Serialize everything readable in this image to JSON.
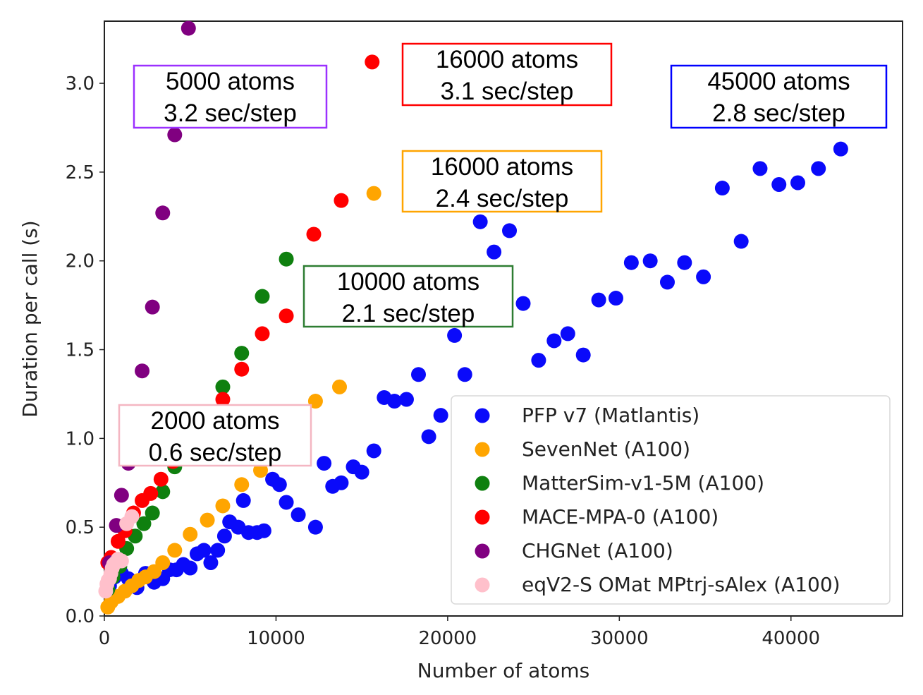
{
  "chart_data": {
    "type": "scatter",
    "title": "",
    "xlabel": "Number of atoms",
    "ylabel": "Duration per call (s)",
    "xlim": [
      0,
      46500
    ],
    "ylim": [
      0,
      3.35
    ],
    "xticks": [
      0,
      10000,
      20000,
      30000,
      40000
    ],
    "xtick_labels": [
      "0",
      "10000",
      "20000",
      "30000",
      "40000"
    ],
    "yticks": [
      0.0,
      0.5,
      1.0,
      1.5,
      2.0,
      2.5,
      3.0
    ],
    "ytick_labels": [
      "0.0",
      "0.5",
      "1.0",
      "1.5",
      "2.0",
      "2.5",
      "3.0"
    ],
    "grid": false,
    "legend_position": "lower-right",
    "series": [
      {
        "name": "PFP v7 (Matlantis)",
        "color": "#0a0afa",
        "points": [
          [
            300,
            0.17
          ],
          [
            600,
            0.22
          ],
          [
            1000,
            0.24
          ],
          [
            1400,
            0.21
          ],
          [
            1900,
            0.16
          ],
          [
            2400,
            0.24
          ],
          [
            2900,
            0.19
          ],
          [
            3400,
            0.21
          ],
          [
            3800,
            0.26
          ],
          [
            4200,
            0.26
          ],
          [
            4600,
            0.29
          ],
          [
            5000,
            0.27
          ],
          [
            5400,
            0.35
          ],
          [
            5800,
            0.37
          ],
          [
            6200,
            0.3
          ],
          [
            6600,
            0.37
          ],
          [
            7000,
            0.45
          ],
          [
            7300,
            0.53
          ],
          [
            7800,
            0.5
          ],
          [
            8100,
            0.65
          ],
          [
            8400,
            0.47
          ],
          [
            8900,
            0.47
          ],
          [
            9300,
            0.48
          ],
          [
            9800,
            0.77
          ],
          [
            10200,
            0.74
          ],
          [
            10600,
            0.64
          ],
          [
            11300,
            0.57
          ],
          [
            12300,
            0.5
          ],
          [
            12800,
            0.86
          ],
          [
            13300,
            0.73
          ],
          [
            13800,
            0.75
          ],
          [
            14500,
            0.84
          ],
          [
            15000,
            0.81
          ],
          [
            15700,
            0.93
          ],
          [
            16300,
            1.23
          ],
          [
            16900,
            1.21
          ],
          [
            17600,
            1.22
          ],
          [
            18300,
            1.36
          ],
          [
            18900,
            1.01
          ],
          [
            19600,
            1.13
          ],
          [
            20400,
            1.58
          ],
          [
            21000,
            1.36
          ],
          [
            21900,
            2.22
          ],
          [
            22700,
            2.05
          ],
          [
            23600,
            2.17
          ],
          [
            24400,
            1.76
          ],
          [
            25300,
            1.44
          ],
          [
            26200,
            1.55
          ],
          [
            27000,
            1.59
          ],
          [
            27900,
            1.47
          ],
          [
            28800,
            1.78
          ],
          [
            29800,
            1.79
          ],
          [
            30700,
            1.99
          ],
          [
            31800,
            2.0
          ],
          [
            32800,
            1.88
          ],
          [
            33800,
            1.99
          ],
          [
            34900,
            1.91
          ],
          [
            36000,
            2.41
          ],
          [
            37100,
            2.11
          ],
          [
            38200,
            2.52
          ],
          [
            39300,
            2.43
          ],
          [
            40400,
            2.44
          ],
          [
            41600,
            2.52
          ],
          [
            42900,
            2.63
          ]
        ]
      },
      {
        "name": "SevenNet (A100)",
        "color": "#ffa500",
        "points": [
          [
            200,
            0.05
          ],
          [
            400,
            0.08
          ],
          [
            800,
            0.11
          ],
          [
            1200,
            0.14
          ],
          [
            1600,
            0.17
          ],
          [
            2000,
            0.2
          ],
          [
            2400,
            0.22
          ],
          [
            2900,
            0.25
          ],
          [
            3400,
            0.3
          ],
          [
            4100,
            0.37
          ],
          [
            5000,
            0.46
          ],
          [
            6000,
            0.54
          ],
          [
            6900,
            0.62
          ],
          [
            8000,
            0.74
          ],
          [
            9100,
            0.82
          ],
          [
            10500,
            0.96
          ],
          [
            12300,
            1.21
          ],
          [
            13700,
            1.29
          ],
          [
            15700,
            2.38
          ]
        ]
      },
      {
        "name": "MatterSim-v1-5M (A100)",
        "color": "#0f800f",
        "points": [
          [
            200,
            0.15
          ],
          [
            500,
            0.22
          ],
          [
            900,
            0.28
          ],
          [
            1300,
            0.38
          ],
          [
            1800,
            0.45
          ],
          [
            2300,
            0.52
          ],
          [
            2800,
            0.58
          ],
          [
            3400,
            0.7
          ],
          [
            4100,
            0.84
          ],
          [
            5100,
            0.96
          ],
          [
            6000,
            1.13
          ],
          [
            6900,
            1.29
          ],
          [
            8000,
            1.48
          ],
          [
            9200,
            1.8
          ],
          [
            10600,
            2.01
          ]
        ]
      },
      {
        "name": "MACE-MPA-0 (A100)",
        "color": "#ff0000",
        "points": [
          [
            200,
            0.3
          ],
          [
            400,
            0.33
          ],
          [
            800,
            0.42
          ],
          [
            1200,
            0.48
          ],
          [
            1700,
            0.58
          ],
          [
            2200,
            0.65
          ],
          [
            2700,
            0.69
          ],
          [
            3300,
            0.77
          ],
          [
            4000,
            0.87
          ],
          [
            4900,
            1.0
          ],
          [
            5900,
            1.13
          ],
          [
            6900,
            1.22
          ],
          [
            8000,
            1.39
          ],
          [
            9200,
            1.59
          ],
          [
            10600,
            1.69
          ],
          [
            12200,
            2.15
          ],
          [
            13800,
            2.34
          ],
          [
            15600,
            3.12
          ]
        ]
      },
      {
        "name": "CHGNet (A100)",
        "color": "#800080",
        "points": [
          [
            300,
            0.3
          ],
          [
            700,
            0.51
          ],
          [
            1000,
            0.68
          ],
          [
            1400,
            0.86
          ],
          [
            2200,
            1.38
          ],
          [
            2800,
            1.74
          ],
          [
            3400,
            2.27
          ],
          [
            4100,
            2.71
          ],
          [
            4900,
            3.31
          ]
        ]
      },
      {
        "name": "eqV2-S OMat MPtrj-sAlex (A100)",
        "color": "#ffc0cb",
        "points": [
          [
            80,
            0.14
          ],
          [
            150,
            0.18
          ],
          [
            220,
            0.2
          ],
          [
            300,
            0.21
          ],
          [
            380,
            0.24
          ],
          [
            460,
            0.27
          ],
          [
            540,
            0.29
          ],
          [
            650,
            0.3
          ],
          [
            800,
            0.32
          ],
          [
            1000,
            0.31
          ],
          [
            1300,
            0.52
          ],
          [
            1600,
            0.56
          ]
        ]
      }
    ],
    "annotations": [
      {
        "line1": "5000 atoms",
        "line2": "3.2 sec/step",
        "border_color": "#9b30ff"
      },
      {
        "line1": "16000 atoms",
        "line2": "3.1 sec/step",
        "border_color": "#ff0000"
      },
      {
        "line1": "45000 atoms",
        "line2": "2.8 sec/step",
        "border_color": "#0000ff"
      },
      {
        "line1": "16000 atoms",
        "line2": "2.4 sec/step",
        "border_color": "#ffa500"
      },
      {
        "line1": "10000 atoms",
        "line2": "2.1 sec/step",
        "border_color": "#2e7d32"
      },
      {
        "line1": "2000 atoms",
        "line2": "0.6 sec/step",
        "border_color": "#f4b6c2"
      }
    ]
  }
}
